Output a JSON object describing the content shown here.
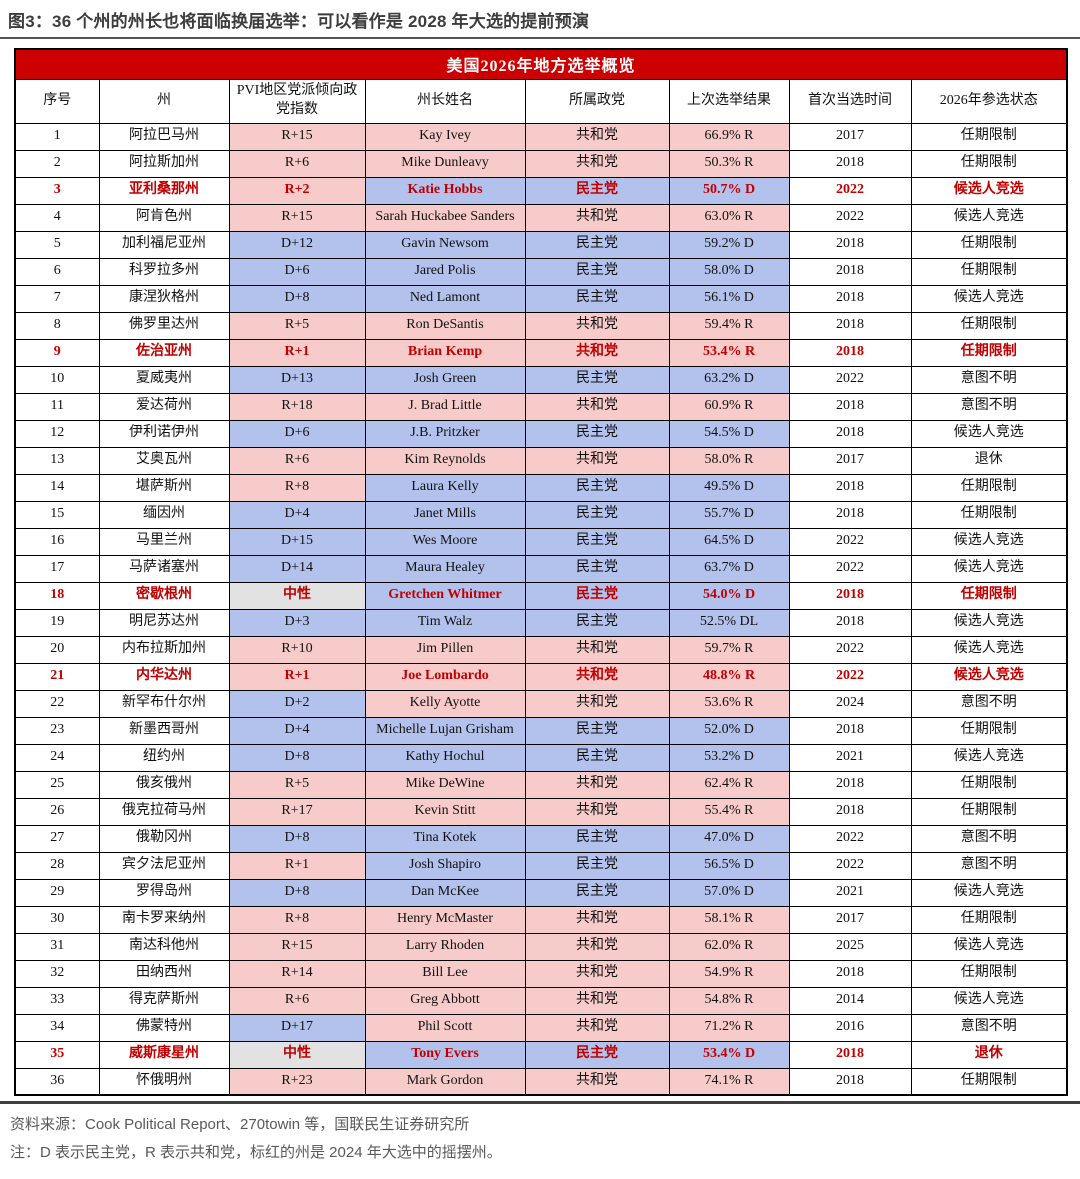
{
  "figure": {
    "title": "图3：36 个州的州长也将面临换届选举：可以看作是 2028 年大选的提前预演",
    "source": "资料来源：Cook Political Report、270towin 等，国联民生证券研究所",
    "note": "注：D 表示民主党，R 表示共和党，标红的州是 2024 年大选中的摇摆州。"
  },
  "colors": {
    "header_bar_bg": "#cc0000",
    "republican_cell_bg": "#f8cbcb",
    "democrat_cell_bg": "#b3c1ed",
    "neutral_cell_bg": "#e2e2e2",
    "swing_state_text": "#c00000"
  },
  "table": {
    "title": "美国2026年地方选举概览",
    "columns": [
      "序号",
      "州",
      "PVI地区党派倾向政党指数",
      "州长姓名",
      "所属政党",
      "上次选举结果",
      "首次当选时间",
      "2026年参选状态"
    ],
    "rows": [
      {
        "no": "1",
        "state": "阿拉巴马州",
        "pvi": "R+15",
        "governor": "Kay Ivey",
        "party": "共和党",
        "result": "66.9% R",
        "first": "2017",
        "status": "任期限制",
        "swing": false
      },
      {
        "no": "2",
        "state": "阿拉斯加州",
        "pvi": "R+6",
        "governor": "Mike Dunleavy",
        "party": "共和党",
        "result": "50.3% R",
        "first": "2018",
        "status": "任期限制",
        "swing": false
      },
      {
        "no": "3",
        "state": "亚利桑那州",
        "pvi": "R+2",
        "governor": "Katie Hobbs",
        "party": "民主党",
        "result": "50.7% D",
        "first": "2022",
        "status": "候选人竞选",
        "swing": true
      },
      {
        "no": "4",
        "state": "阿肯色州",
        "pvi": "R+15",
        "governor": "Sarah Huckabee Sanders",
        "party": "共和党",
        "result": "63.0% R",
        "first": "2022",
        "status": "候选人竞选",
        "swing": false
      },
      {
        "no": "5",
        "state": "加利福尼亚州",
        "pvi": "D+12",
        "governor": "Gavin Newsom",
        "party": "民主党",
        "result": "59.2% D",
        "first": "2018",
        "status": "任期限制",
        "swing": false
      },
      {
        "no": "6",
        "state": "科罗拉多州",
        "pvi": "D+6",
        "governor": "Jared Polis",
        "party": "民主党",
        "result": "58.0% D",
        "first": "2018",
        "status": "任期限制",
        "swing": false
      },
      {
        "no": "7",
        "state": "康涅狄格州",
        "pvi": "D+8",
        "governor": "Ned Lamont",
        "party": "民主党",
        "result": "56.1% D",
        "first": "2018",
        "status": "候选人竞选",
        "swing": false
      },
      {
        "no": "8",
        "state": "佛罗里达州",
        "pvi": "R+5",
        "governor": "Ron DeSantis",
        "party": "共和党",
        "result": "59.4% R",
        "first": "2018",
        "status": "任期限制",
        "swing": false
      },
      {
        "no": "9",
        "state": "佐治亚州",
        "pvi": "R+1",
        "governor": "Brian Kemp",
        "party": "共和党",
        "result": "53.4% R",
        "first": "2018",
        "status": "任期限制",
        "swing": true
      },
      {
        "no": "10",
        "state": "夏威夷州",
        "pvi": "D+13",
        "governor": "Josh Green",
        "party": "民主党",
        "result": "63.2% D",
        "first": "2022",
        "status": "意图不明",
        "swing": false
      },
      {
        "no": "11",
        "state": "爱达荷州",
        "pvi": "R+18",
        "governor": "J. Brad Little",
        "party": "共和党",
        "result": "60.9% R",
        "first": "2018",
        "status": "意图不明",
        "swing": false
      },
      {
        "no": "12",
        "state": "伊利诺伊州",
        "pvi": "D+6",
        "governor": "J.B. Pritzker",
        "party": "民主党",
        "result": "54.5% D",
        "first": "2018",
        "status": "候选人竞选",
        "swing": false
      },
      {
        "no": "13",
        "state": "艾奥瓦州",
        "pvi": "R+6",
        "governor": "Kim Reynolds",
        "party": "共和党",
        "result": "58.0% R",
        "first": "2017",
        "status": "退休",
        "swing": false
      },
      {
        "no": "14",
        "state": "堪萨斯州",
        "pvi": "R+8",
        "governor": "Laura Kelly",
        "party": "民主党",
        "result": "49.5% D",
        "first": "2018",
        "status": "任期限制",
        "swing": false
      },
      {
        "no": "15",
        "state": "缅因州",
        "pvi": "D+4",
        "governor": "Janet Mills",
        "party": "民主党",
        "result": "55.7% D",
        "first": "2018",
        "status": "任期限制",
        "swing": false
      },
      {
        "no": "16",
        "state": "马里兰州",
        "pvi": "D+15",
        "governor": "Wes Moore",
        "party": "民主党",
        "result": "64.5% D",
        "first": "2022",
        "status": "候选人竞选",
        "swing": false
      },
      {
        "no": "17",
        "state": "马萨诸塞州",
        "pvi": "D+14",
        "governor": "Maura Healey",
        "party": "民主党",
        "result": "63.7% D",
        "first": "2022",
        "status": "候选人竞选",
        "swing": false
      },
      {
        "no": "18",
        "state": "密歇根州",
        "pvi": "中性",
        "governor": "Gretchen Whitmer",
        "party": "民主党",
        "result": "54.0% D",
        "first": "2018",
        "status": "任期限制",
        "swing": true
      },
      {
        "no": "19",
        "state": "明尼苏达州",
        "pvi": "D+3",
        "governor": "Tim Walz",
        "party": "民主党",
        "result": "52.5% DL",
        "first": "2018",
        "status": "候选人竞选",
        "swing": false
      },
      {
        "no": "20",
        "state": "内布拉斯加州",
        "pvi": "R+10",
        "governor": "Jim Pillen",
        "party": "共和党",
        "result": "59.7% R",
        "first": "2022",
        "status": "候选人竞选",
        "swing": false
      },
      {
        "no": "21",
        "state": "内华达州",
        "pvi": "R+1",
        "governor": "Joe Lombardo",
        "party": "共和党",
        "result": "48.8% R",
        "first": "2022",
        "status": "候选人竞选",
        "swing": true
      },
      {
        "no": "22",
        "state": "新罕布什尔州",
        "pvi": "D+2",
        "governor": "Kelly Ayotte",
        "party": "共和党",
        "result": "53.6% R",
        "first": "2024",
        "status": "意图不明",
        "swing": false
      },
      {
        "no": "23",
        "state": "新墨西哥州",
        "pvi": "D+4",
        "governor": "Michelle Lujan Grisham",
        "party": "民主党",
        "result": "52.0% D",
        "first": "2018",
        "status": "任期限制",
        "swing": false
      },
      {
        "no": "24",
        "state": "纽约州",
        "pvi": "D+8",
        "governor": "Kathy Hochul",
        "party": "民主党",
        "result": "53.2% D",
        "first": "2021",
        "status": "候选人竞选",
        "swing": false
      },
      {
        "no": "25",
        "state": "俄亥俄州",
        "pvi": "R+5",
        "governor": "Mike DeWine",
        "party": "共和党",
        "result": "62.4% R",
        "first": "2018",
        "status": "任期限制",
        "swing": false
      },
      {
        "no": "26",
        "state": "俄克拉荷马州",
        "pvi": "R+17",
        "governor": "Kevin Stitt",
        "party": "共和党",
        "result": "55.4% R",
        "first": "2018",
        "status": "任期限制",
        "swing": false
      },
      {
        "no": "27",
        "state": "俄勒冈州",
        "pvi": "D+8",
        "governor": "Tina Kotek",
        "party": "民主党",
        "result": "47.0% D",
        "first": "2022",
        "status": "意图不明",
        "swing": false
      },
      {
        "no": "28",
        "state": "宾夕法尼亚州",
        "pvi": "R+1",
        "governor": "Josh Shapiro",
        "party": "民主党",
        "result": "56.5% D",
        "first": "2022",
        "status": "意图不明",
        "swing": false
      },
      {
        "no": "29",
        "state": "罗得岛州",
        "pvi": "D+8",
        "governor": "Dan McKee",
        "party": "民主党",
        "result": "57.0% D",
        "first": "2021",
        "status": "候选人竞选",
        "swing": false
      },
      {
        "no": "30",
        "state": "南卡罗来纳州",
        "pvi": "R+8",
        "governor": "Henry McMaster",
        "party": "共和党",
        "result": "58.1% R",
        "first": "2017",
        "status": "任期限制",
        "swing": false
      },
      {
        "no": "31",
        "state": "南达科他州",
        "pvi": "R+15",
        "governor": "Larry Rhoden",
        "party": "共和党",
        "result": "62.0% R",
        "first": "2025",
        "status": "候选人竞选",
        "swing": false
      },
      {
        "no": "32",
        "state": "田纳西州",
        "pvi": "R+14",
        "governor": "Bill Lee",
        "party": "共和党",
        "result": "54.9% R",
        "first": "2018",
        "status": "任期限制",
        "swing": false
      },
      {
        "no": "33",
        "state": "得克萨斯州",
        "pvi": "R+6",
        "governor": "Greg Abbott",
        "party": "共和党",
        "result": "54.8% R",
        "first": "2014",
        "status": "候选人竞选",
        "swing": false
      },
      {
        "no": "34",
        "state": "佛蒙特州",
        "pvi": "D+17",
        "governor": "Phil Scott",
        "party": "共和党",
        "result": "71.2% R",
        "first": "2016",
        "status": "意图不明",
        "swing": false
      },
      {
        "no": "35",
        "state": "威斯康星州",
        "pvi": "中性",
        "governor": "Tony Evers",
        "party": "民主党",
        "result": "53.4% D",
        "first": "2018",
        "status": "退休",
        "swing": true
      },
      {
        "no": "36",
        "state": "怀俄明州",
        "pvi": "R+23",
        "governor": "Mark Gordon",
        "party": "共和党",
        "result": "74.1% R",
        "first": "2018",
        "status": "任期限制",
        "swing": false
      }
    ]
  }
}
